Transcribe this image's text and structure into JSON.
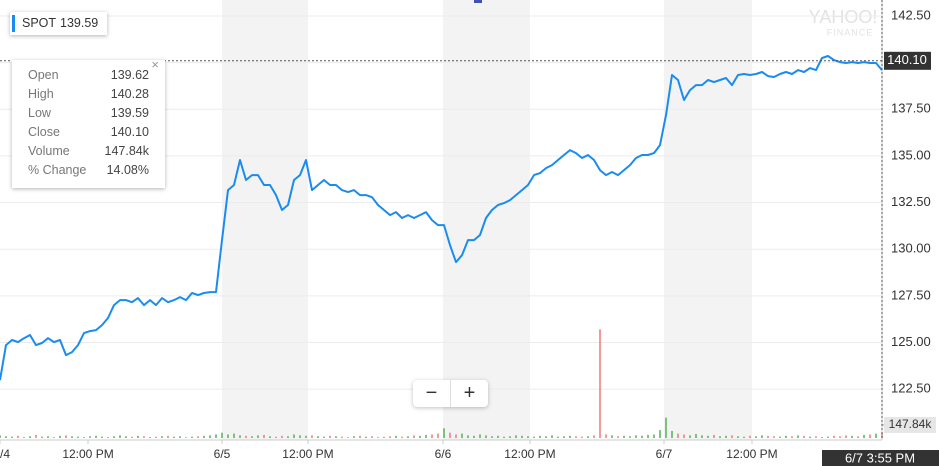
{
  "chart_data": {
    "type": "line",
    "xlim": [
      0,
      147
    ],
    "xticks": [
      {
        "value": 0,
        "label": "/4"
      },
      {
        "value": 14.67,
        "label": "12:00 PM"
      },
      {
        "value": 37,
        "label": "6/5"
      },
      {
        "value": 51.33,
        "label": "12:00 PM"
      },
      {
        "value": 73.83,
        "label": "6/6"
      },
      {
        "value": 88.33,
        "label": "12:00 PM"
      },
      {
        "value": 110.67,
        "label": "6/7"
      },
      {
        "value": 125.33,
        "label": "12:00 PM"
      }
    ],
    "ylim": [
      119.77,
      143.36
    ],
    "yticks": [
      {
        "value": 142.5,
        "label": "142.50"
      },
      {
        "value": 140,
        "label": "140.00"
      },
      {
        "value": 137.5,
        "label": "137.50"
      },
      {
        "value": 135,
        "label": "135.00"
      },
      {
        "value": 132.5,
        "label": "132.50"
      },
      {
        "value": 130,
        "label": "130.00"
      },
      {
        "value": 127.5,
        "label": "127.50"
      },
      {
        "value": 125,
        "label": "125.00"
      },
      {
        "value": 122.5,
        "label": "122.50"
      }
    ],
    "y2lim": [
      0,
      1200000
    ],
    "y2ticks": [
      {
        "value": 147840,
        "label": "147.84k"
      }
    ],
    "grid": true,
    "series": [
      {
        "color": "#1a8cf0",
        "values": [
          122.98,
          124.86,
          125.13,
          125.02,
          125.23,
          125.4,
          124.86,
          124.97,
          125.23,
          125.02,
          125.13,
          124.32,
          124.48,
          124.86,
          125.5,
          125.61,
          125.66,
          125.93,
          126.31,
          127.0,
          127.27,
          127.27,
          127.16,
          127.38,
          127.0,
          127.27,
          127.0,
          127.38,
          127.16,
          127.27,
          127.43,
          127.27,
          127.65,
          127.54,
          127.65,
          127.7,
          127.7,
          130.49,
          133.17,
          133.44,
          134.78,
          133.71,
          133.97,
          133.97,
          133.44,
          133.44,
          132.9,
          132.1,
          132.37,
          133.71,
          133.97,
          134.78,
          133.17,
          133.44,
          133.71,
          133.44,
          133.44,
          133.17,
          133.06,
          133.17,
          132.9,
          132.9,
          132.79,
          132.37,
          132.1,
          131.83,
          131.99,
          131.67,
          131.83,
          131.67,
          131.83,
          131.99,
          131.56,
          131.29,
          131.29,
          130.22,
          129.31,
          129.68,
          130.49,
          130.49,
          130.76,
          131.67,
          132.1,
          132.37,
          132.47,
          132.63,
          132.9,
          133.17,
          133.44,
          133.97,
          134.08,
          134.35,
          134.51,
          134.78,
          135.05,
          135.31,
          135.15,
          134.89,
          135.05,
          134.78,
          134.24,
          133.97,
          134.14,
          133.97,
          134.24,
          134.51,
          134.89,
          135.05,
          135.05,
          135.15,
          135.58,
          137.19,
          139.34,
          139.07,
          138.0,
          138.53,
          138.8,
          138.8,
          139.07,
          138.96,
          139.07,
          139.18,
          138.8,
          139.34,
          139.39,
          139.34,
          139.39,
          139.5,
          139.28,
          139.23,
          139.39,
          139.5,
          139.39,
          139.6,
          139.5,
          139.71,
          139.6,
          140.25,
          140.36,
          140.14,
          140.03,
          139.98,
          140.03,
          139.98,
          140.03,
          139.98,
          139.98,
          139.6
        ]
      },
      {
        "axis": "y2",
        "color": "#5cb85c",
        "down_color": "#f08080",
        "values": [
          30000,
          20000,
          15000,
          25000,
          10000,
          20000,
          35000,
          15000,
          20000,
          10000,
          25000,
          30000,
          20000,
          15000,
          10000,
          20000,
          25000,
          15000,
          10000,
          20000,
          30000,
          20000,
          15000,
          25000,
          20000,
          10000,
          15000,
          20000,
          25000,
          15000,
          20000,
          10000,
          15000,
          20000,
          25000,
          30000,
          40000,
          60000,
          40000,
          50000,
          30000,
          25000,
          20000,
          30000,
          35000,
          20000,
          15000,
          25000,
          20000,
          40000,
          30000,
          25000,
          30000,
          20000,
          15000,
          25000,
          20000,
          15000,
          10000,
          20000,
          25000,
          15000,
          20000,
          10000,
          15000,
          20000,
          25000,
          15000,
          20000,
          30000,
          25000,
          35000,
          40000,
          50000,
          110000,
          60000,
          40000,
          50000,
          30000,
          25000,
          40000,
          30000,
          20000,
          25000,
          15000,
          20000,
          30000,
          25000,
          20000,
          15000,
          25000,
          20000,
          30000,
          15000,
          20000,
          25000,
          20000,
          15000,
          20000,
          30000,
          1230000,
          40000,
          30000,
          20000,
          25000,
          20000,
          30000,
          25000,
          35000,
          40000,
          90000,
          230000,
          80000,
          50000,
          40000,
          30000,
          45000,
          30000,
          25000,
          35000,
          20000,
          25000,
          30000,
          20000,
          15000,
          25000,
          20000,
          30000,
          25000,
          20000,
          15000,
          25000,
          20000,
          30000,
          25000,
          15000,
          20000,
          10000,
          15000,
          25000,
          20000,
          30000,
          25000,
          20000,
          35000,
          40000,
          50000,
          60000
        ]
      }
    ],
    "price_tag": {
      "value": 140.1,
      "label": "140.10"
    },
    "crosshair": {
      "x": 147,
      "label": "6/7 3:55 PM"
    },
    "watermark": {
      "line1": "YAHOO!",
      "line2": "FINANCE"
    }
  },
  "tooltip": {
    "symbol": "SPOT",
    "price": "139.59",
    "rows": [
      {
        "label": "Open",
        "value": "139.62"
      },
      {
        "label": "High",
        "value": "140.28"
      },
      {
        "label": "Low",
        "value": "139.59"
      },
      {
        "label": "Close",
        "value": "140.10"
      },
      {
        "label": "Volume",
        "value": "147.84k"
      },
      {
        "label": "% Change",
        "value": "14.08%"
      }
    ]
  }
}
